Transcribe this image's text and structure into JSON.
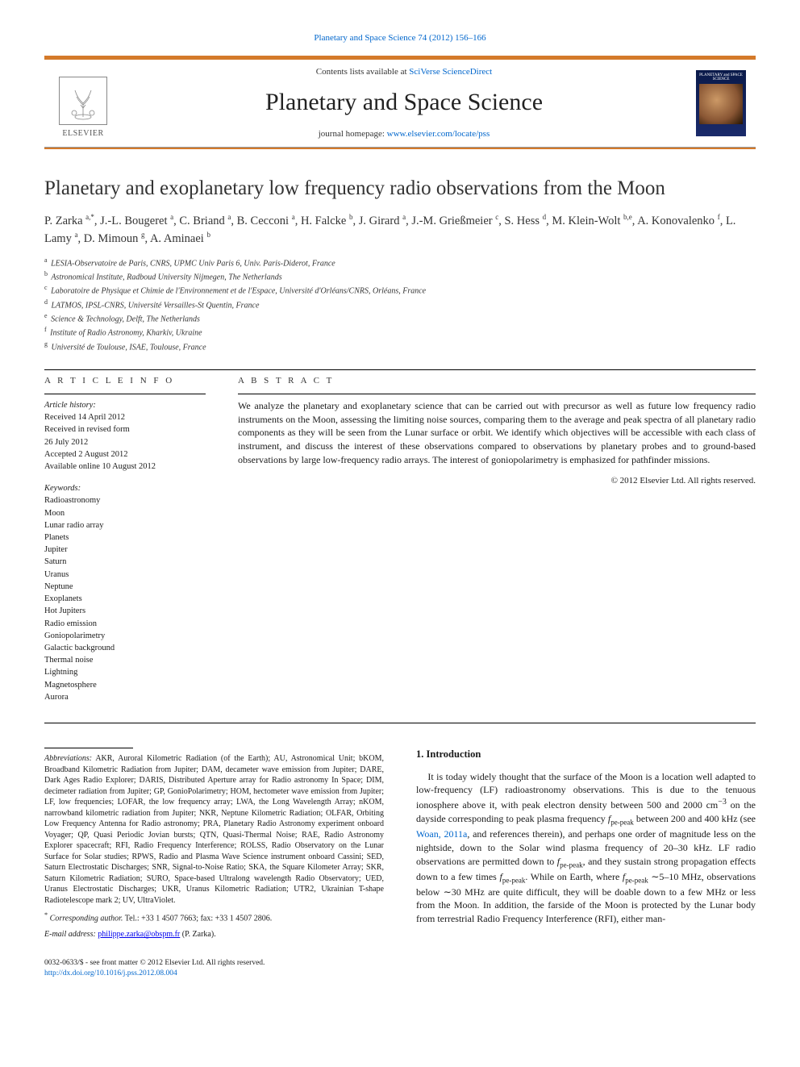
{
  "header_link": "Planetary and Space Science 74 (2012) 156–166",
  "banner": {
    "contents_prefix": "Contents lists available at ",
    "contents_link": "SciVerse ScienceDirect",
    "journal_name": "Planetary and Space Science",
    "homepage_prefix": "journal homepage: ",
    "homepage_link": "www.elsevier.com/locate/pss",
    "publisher": "ELSEVIER",
    "cover_text": "PLANETARY and SPACE SCIENCE"
  },
  "title": "Planetary and exoplanetary low frequency radio observations from the Moon",
  "authors_html": "P. Zarka <sup>a,*</sup>, J.-L. Bougeret <sup>a</sup>, C. Briand <sup>a</sup>, B. Cecconi <sup>a</sup>, H. Falcke <sup>b</sup>, J. Girard <sup>a</sup>, J.-M. Grießmeier <sup>c</sup>, S. Hess <sup>d</sup>, M. Klein-Wolt <sup>b,e</sup>, A. Konovalenko <sup>f</sup>, L. Lamy <sup>a</sup>, D. Mimoun <sup>g</sup>, A. Aminaei <sup>b</sup>",
  "affiliations": [
    {
      "sup": "a",
      "text": "LESIA-Observatoire de Paris, CNRS, UPMC Univ Paris 6, Univ. Paris-Diderot, France"
    },
    {
      "sup": "b",
      "text": "Astronomical Institute, Radboud University Nijmegen, The Netherlands"
    },
    {
      "sup": "c",
      "text": "Laboratoire de Physique et Chimie de l'Environnement et de l'Espace, Université d'Orléans/CNRS, Orléans, France"
    },
    {
      "sup": "d",
      "text": "LATMOS, IPSL-CNRS, Université Versailles-St Quentin, France"
    },
    {
      "sup": "e",
      "text": "Science & Technology, Delft, The Netherlands"
    },
    {
      "sup": "f",
      "text": "Institute of Radio Astronomy, Kharkiv, Ukraine"
    },
    {
      "sup": "g",
      "text": "Université de Toulouse, ISAE, Toulouse, France"
    }
  ],
  "info_label": "A R T I C L E   I N F O",
  "abs_label": "A B S T R A C T",
  "history": {
    "label": "Article history:",
    "received": "Received 14 April 2012",
    "revised": "Received in revised form",
    "revised_date": "26 July 2012",
    "accepted": "Accepted 2 August 2012",
    "online": "Available online 10 August 2012"
  },
  "keywords_label": "Keywords:",
  "keywords": [
    "Radioastronomy",
    "Moon",
    "Lunar radio array",
    "Planets",
    "Jupiter",
    "Saturn",
    "Uranus",
    "Neptune",
    "Exoplanets",
    "Hot Jupiters",
    "Radio emission",
    "Goniopolarimetry",
    "Galactic background",
    "Thermal noise",
    "Lightning",
    "Magnetosphere",
    "Aurora"
  ],
  "abstract": "We analyze the planetary and exoplanetary science that can be carried out with precursor as well as future low frequency radio instruments on the Moon, assessing the limiting noise sources, comparing them to the average and peak spectra of all planetary radio components as they will be seen from the Lunar surface or orbit. We identify which objectives will be accessible with each class of instrument, and discuss the interest of these observations compared to observations by planetary probes and to ground-based observations by large low-frequency radio arrays. The interest of goniopolarimetry is emphasized for pathfinder missions.",
  "copyright": "© 2012 Elsevier Ltd. All rights reserved.",
  "abbrev_label": "Abbreviations:",
  "abbreviations": "AKR, Auroral Kilometric Radiation (of the Earth); AU, Astronomical Unit; bKOM, Broadband Kilometric Radiation from Jupiter; DAM, decameter wave emission from Jupiter; DARE, Dark Ages Radio Explorer; DARIS, Distributed Aperture array for Radio astronomy In Space; DIM, decimeter radiation from Jupiter; GP, GonioPolarimetry; HOM, hectometer wave emission from Jupiter; LF, low frequencies; LOFAR, the low frequency array; LWA, the Long Wavelength Array; nKOM, narrowband kilometric radiation from Jupiter; NKR, Neptune Kilometric Radiation; OLFAR, Orbiting Low Frequency Antenna for Radio astronomy; PRA, Planetary Radio Astronomy experiment onboard Voyager; QP, Quasi Periodic Jovian bursts; QTN, Quasi-Thermal Noise; RAE, Radio Astronomy Explorer spacecraft; RFI, Radio Frequency Interference; ROLSS, Radio Observatory on the Lunar Surface for Solar studies; RPWS, Radio and Plasma Wave Science instrument onboard Cassini; SED, Saturn Electrostatic Discharges; SNR, Signal-to-Noise Ratio; SKA, the Square Kilometer Array; SKR, Saturn Kilometric Radiation; SURO, Space-based Ultralong wavelength Radio Observatory; UED, Uranus Electrostatic Discharges; UKR, Uranus Kilometric Radiation; UTR2, Ukrainian T-shape Radiotelescope mark 2; UV, UltraViolet.",
  "corr_label": "Corresponding author.",
  "corr_contact": "Tel.: +33 1 4507 7663; fax: +33 1 4507 2806.",
  "email_label": "E-mail address:",
  "email": "philippe.zarka@obspm.fr",
  "email_paren": "(P. Zarka).",
  "section1_heading": "1.  Introduction",
  "intro_para": "It is today widely thought that the surface of the Moon is a location well adapted to low-frequency (LF) radioastronomy observations. This is due to the tenuous ionosphere above it, with peak electron density between 500 and 2000 cm⁻³ on the dayside corresponding to peak plasma frequency fpe-peak between 200 and 400 kHz (see Woan, 2011a, and references therein), and perhaps one order of magnitude less on the nightside, down to the Solar wind plasma frequency of 20–30 kHz. LF radio observations are permitted down to fpe-peak, and they sustain strong propagation effects down to a few times fpe-peak. While on Earth, where fpe-peak ∼5–10 MHz, observations below ∼30 MHz are quite difficult, they will be doable down to a few MHz or less from the Moon. In addition, the farside of the Moon is protected by the Lunar body from terrestrial Radio Frequency Interference (RFI), either man-",
  "footer": {
    "issn": "0032-0633/$ - see front matter © 2012 Elsevier Ltd. All rights reserved.",
    "doi": "http://dx.doi.org/10.1016/j.pss.2012.08.004"
  },
  "colors": {
    "accent": "#d47a2a",
    "link": "#0066cc",
    "text": "#1a1a1a",
    "cover_bg_top": "#0a1a4a",
    "cover_bg_bot": "#1a2a6a"
  }
}
